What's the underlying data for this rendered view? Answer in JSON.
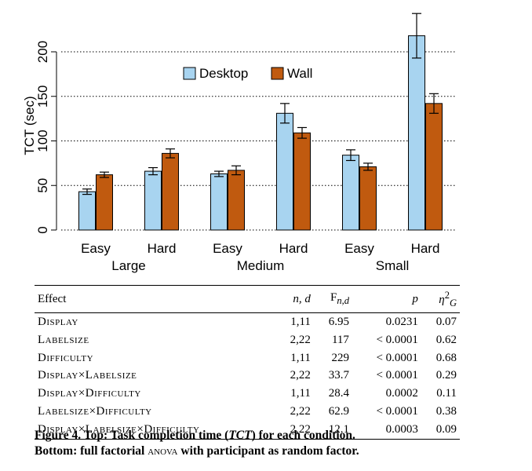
{
  "chart_data": {
    "type": "bar",
    "ylabel": "TCT (sec)",
    "ylim": [
      0,
      220
    ],
    "yticks": [
      0,
      50,
      100,
      150,
      200
    ],
    "grid": "horizontal-dotted",
    "legend_position": "top-center",
    "categories": [
      "Easy",
      "Hard",
      "Easy",
      "Hard",
      "Easy",
      "Hard"
    ],
    "groups": [
      "Large",
      "Medium",
      "Small"
    ],
    "series": [
      {
        "name": "Desktop",
        "color": "#a8d4f0",
        "values": [
          43,
          66,
          63,
          131,
          84,
          218
        ],
        "errors": [
          3,
          4,
          3,
          11,
          6,
          25
        ]
      },
      {
        "name": "Wall",
        "color": "#c05a0f",
        "values": [
          62,
          86,
          67,
          109,
          71,
          142
        ],
        "errors": [
          3,
          5,
          5,
          6,
          4,
          11
        ]
      }
    ]
  },
  "table": {
    "headers": {
      "effect": "Effect",
      "nd": "n, d",
      "f": "F",
      "f_sub": "n,d",
      "p": "p",
      "eta": "η",
      "eta_sup": "2",
      "eta_sub": "G"
    },
    "rows": [
      {
        "effect": "Display",
        "nd": "1,11",
        "f": "6.95",
        "p": "0.0231",
        "eta": "0.07"
      },
      {
        "effect": "Labelsize",
        "nd": "2,22",
        "f": "117",
        "p": "< 0.0001",
        "eta": "0.62"
      },
      {
        "effect": "Difficulty",
        "nd": "1,11",
        "f": "229",
        "p": "< 0.0001",
        "eta": "0.68"
      },
      {
        "effect": "Display×Labelsize",
        "nd": "2,22",
        "f": "33.7",
        "p": "< 0.0001",
        "eta": "0.29"
      },
      {
        "effect": "Display×Difficulty",
        "nd": "1,11",
        "f": "28.4",
        "p": "0.0002",
        "eta": "0.11"
      },
      {
        "effect": "Labelsize×Difficulty",
        "nd": "2,22",
        "f": "62.9",
        "p": "< 0.0001",
        "eta": "0.38"
      },
      {
        "effect": "Display×Labelsize×Difficulty",
        "nd": "2,22",
        "f": "12.1",
        "p": "0.0003",
        "eta": "0.09"
      }
    ]
  },
  "caption": {
    "line1_a": "Figure 4. Top: Task completion time (",
    "line1_tct": "TCT",
    "line1_b": ") for each condition.",
    "line2_a": "Bottom: full factorial ",
    "line2_anova": "anova",
    "line2_b": " with participant as random factor."
  }
}
